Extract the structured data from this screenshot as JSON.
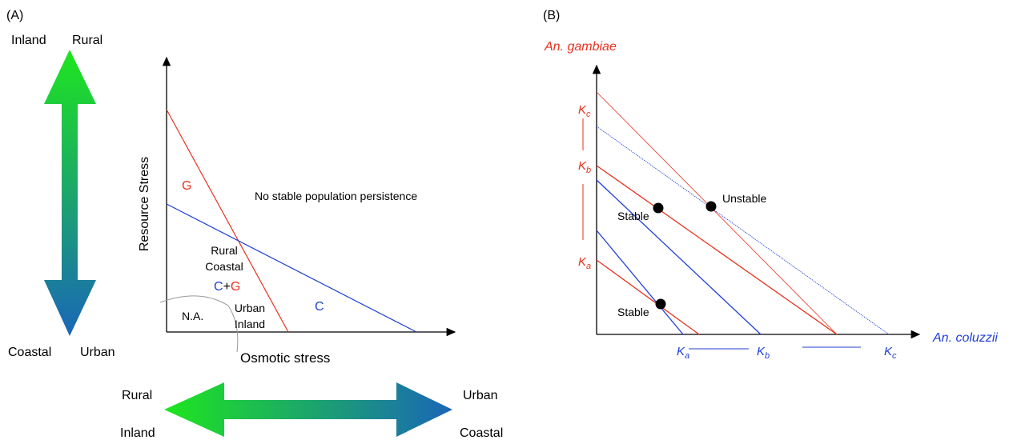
{
  "panel_a": {
    "label": "(A)",
    "vertical_arrow": {
      "top_left": "Inland",
      "top_right": "Rural",
      "bottom_left": "Coastal",
      "bottom_right": "Urban"
    },
    "y_axis_label": "Resource Stress",
    "x_axis_label": "Osmotic stress",
    "regions": {
      "g": "G",
      "none": "No stable population persistence",
      "rural_coastal": [
        "Rural",
        "Coastal"
      ],
      "c_plus_g": [
        "C",
        "+",
        "G"
      ],
      "na": "N.A.",
      "urban_inland": [
        "Urban",
        "Inland"
      ],
      "c": "C"
    },
    "horizontal_arrow": {
      "top_left": "Rural",
      "top_right": "Urban",
      "bottom_left": "Inland",
      "bottom_right": "Coastal"
    }
  },
  "panel_b": {
    "label": "(B)",
    "y_axis_label": "An. gambiae",
    "x_axis_label": "An. coluzzii",
    "y_labels": [
      {
        "symbol": "K",
        "sub": "c"
      },
      {
        "symbol": "K",
        "sub": "b"
      },
      {
        "symbol": "K",
        "sub": "a"
      }
    ],
    "x_labels": [
      {
        "symbol": "K",
        "sub": "a"
      },
      {
        "symbol": "K",
        "sub": "b"
      },
      {
        "symbol": "K",
        "sub": "c"
      }
    ],
    "points": [
      "Unstable",
      "Stable",
      "Stable"
    ]
  }
}
